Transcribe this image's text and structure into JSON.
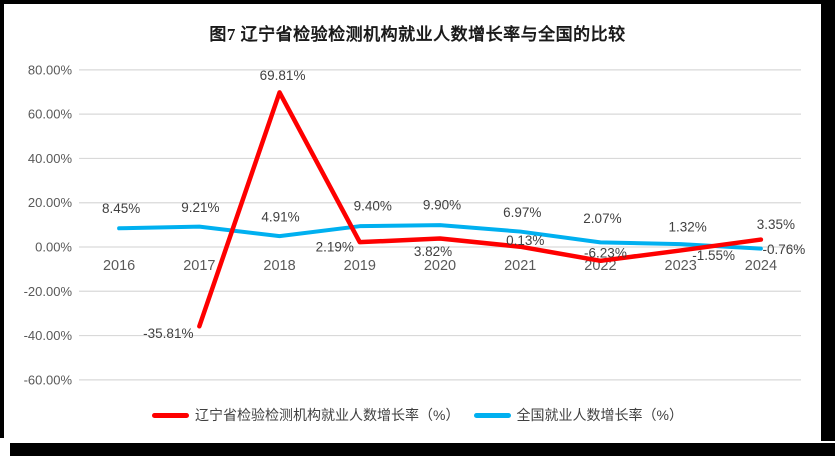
{
  "title": "图7 辽宁省检验检测机构就业人数增长率与全国的比较",
  "chart_data": {
    "type": "line",
    "categories": [
      "2016",
      "2017",
      "2018",
      "2019",
      "2020",
      "2021",
      "2022",
      "2023",
      "2024"
    ],
    "series": [
      {
        "name": "辽宁省检验检测机构就业人数增长率（%）",
        "color": "#FE0000",
        "stroke_width": 4.5,
        "values": [
          null,
          -35.81,
          69.81,
          2.19,
          3.82,
          0.13,
          -6.23,
          -1.55,
          3.35
        ],
        "labels": [
          "",
          "-35.81%",
          "69.81%",
          "2.19%",
          "3.82%",
          "0.13%",
          "-6.23%",
          "-1.55%",
          "3.35%"
        ],
        "label_offsets": [
          [
            0,
            0
          ],
          [
            -31,
            7
          ],
          [
            3,
            -17
          ],
          [
            -25,
            5
          ],
          [
            -7,
            13
          ],
          [
            5,
            -6
          ],
          [
            5,
            -8
          ],
          [
            33,
            5
          ],
          [
            15,
            -15
          ]
        ]
      },
      {
        "name": "全国就业人数增长率（%）",
        "color": "#00B0F0",
        "stroke_width": 4,
        "values": [
          8.45,
          9.21,
          4.91,
          9.4,
          9.9,
          6.97,
          2.07,
          1.32,
          -0.76
        ],
        "labels": [
          "8.45%",
          "9.21%",
          "4.91%",
          "9.40%",
          "9.90%",
          "6.97%",
          "2.07%",
          "1.32%",
          "-0.76%"
        ],
        "label_offsets": [
          [
            2,
            -20
          ],
          [
            1,
            -19
          ],
          [
            1,
            -19
          ],
          [
            13,
            -20
          ],
          [
            2,
            -20
          ],
          [
            2,
            -19
          ],
          [
            2,
            -24
          ],
          [
            7,
            -17
          ],
          [
            23,
            1
          ]
        ]
      }
    ],
    "y_ticks": [
      "80.00%",
      "60.00%",
      "40.00%",
      "20.00%",
      "0.00%",
      "-20.00%",
      "-40.00%",
      "-60.00%"
    ],
    "ylim": [
      -60,
      80
    ],
    "y_step": 20,
    "grid": true,
    "legend_position": "bottom",
    "xlabel": "",
    "ylabel": ""
  },
  "colors": {
    "grid": "#D9D9D9",
    "axis_text": "#595959",
    "data_label_text": "#404040",
    "background": "#FFFFFF",
    "frame": "#000000"
  }
}
